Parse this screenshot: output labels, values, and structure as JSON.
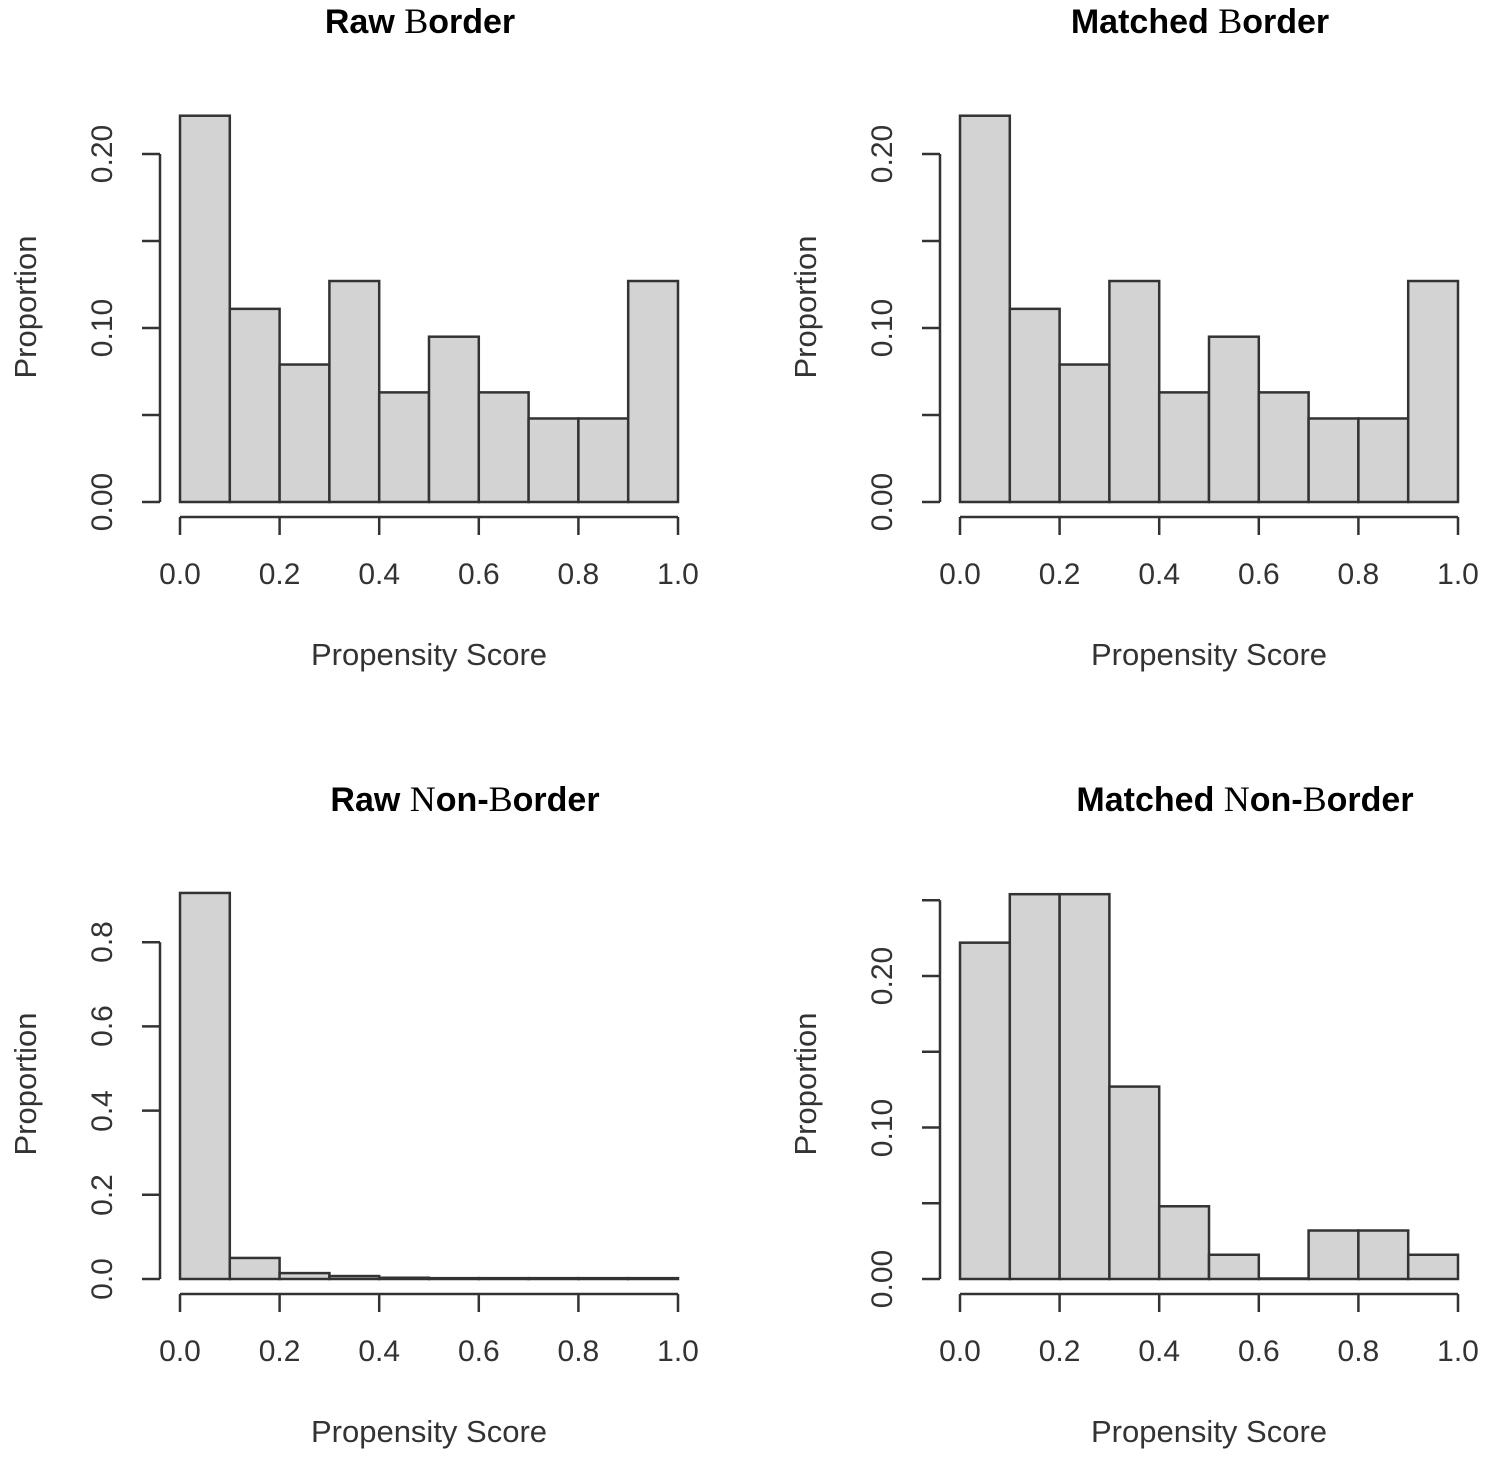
{
  "chart_data": [
    {
      "type": "bar",
      "id": "raw-border",
      "title": "Raw Border",
      "title_parts": [
        {
          "text": "Raw ",
          "serif": false
        },
        {
          "text": "B",
          "serif": true
        },
        {
          "text": "order",
          "serif": false
        }
      ],
      "xlabel": "Propensity Score",
      "ylabel": "Proportion",
      "bin_edges": [
        0.0,
        0.1,
        0.2,
        0.3,
        0.4,
        0.5,
        0.6,
        0.7,
        0.8,
        0.9,
        1.0
      ],
      "categories": [
        "0.0-0.1",
        "0.1-0.2",
        "0.2-0.3",
        "0.3-0.4",
        "0.4-0.5",
        "0.5-0.6",
        "0.6-0.7",
        "0.7-0.8",
        "0.8-0.9",
        "0.9-1.0"
      ],
      "values": [
        0.222,
        0.111,
        0.079,
        0.127,
        0.063,
        0.095,
        0.063,
        0.048,
        0.048,
        0.127
      ],
      "xticks": [
        "0.0",
        "0.2",
        "0.4",
        "0.6",
        "0.8",
        "1.0"
      ],
      "yticks": [
        0.0,
        0.05,
        0.1,
        0.15,
        0.2
      ],
      "ytick_labels": [
        "0.00",
        "",
        "0.10",
        "",
        "0.20"
      ],
      "ylim": [
        0,
        0.2
      ],
      "xlim": [
        0,
        1
      ],
      "grid": false
    },
    {
      "type": "bar",
      "id": "matched-border",
      "title": "Matched Border",
      "title_parts": [
        {
          "text": "Matched ",
          "serif": false
        },
        {
          "text": "B",
          "serif": true
        },
        {
          "text": "order",
          "serif": false
        }
      ],
      "xlabel": "Propensity Score",
      "ylabel": "Proportion",
      "bin_edges": [
        0.0,
        0.1,
        0.2,
        0.3,
        0.4,
        0.5,
        0.6,
        0.7,
        0.8,
        0.9,
        1.0
      ],
      "categories": [
        "0.0-0.1",
        "0.1-0.2",
        "0.2-0.3",
        "0.3-0.4",
        "0.4-0.5",
        "0.5-0.6",
        "0.6-0.7",
        "0.7-0.8",
        "0.8-0.9",
        "0.9-1.0"
      ],
      "values": [
        0.222,
        0.111,
        0.079,
        0.127,
        0.063,
        0.095,
        0.063,
        0.048,
        0.048,
        0.127
      ],
      "xticks": [
        "0.0",
        "0.2",
        "0.4",
        "0.6",
        "0.8",
        "1.0"
      ],
      "yticks": [
        0.0,
        0.05,
        0.1,
        0.15,
        0.2
      ],
      "ytick_labels": [
        "0.00",
        "",
        "0.10",
        "",
        "0.20"
      ],
      "ylim": [
        0,
        0.2
      ],
      "xlim": [
        0,
        1
      ],
      "grid": false
    },
    {
      "type": "bar",
      "id": "raw-non-border",
      "title": "Raw Non-Border",
      "title_parts": [
        {
          "text": "Raw ",
          "serif": false
        },
        {
          "text": "N",
          "serif": true
        },
        {
          "text": "on-",
          "serif": false
        },
        {
          "text": "B",
          "serif": true
        },
        {
          "text": "order",
          "serif": false
        }
      ],
      "xlabel": "Propensity Score",
      "ylabel": "Proportion",
      "bin_edges": [
        0.0,
        0.1,
        0.2,
        0.3,
        0.4,
        0.5,
        0.6,
        0.7,
        0.8,
        0.9,
        1.0
      ],
      "categories": [
        "0.0-0.1",
        "0.1-0.2",
        "0.2-0.3",
        "0.3-0.4",
        "0.4-0.5",
        "0.5-0.6",
        "0.6-0.7",
        "0.7-0.8",
        "0.8-0.9",
        "0.9-1.0"
      ],
      "values": [
        0.917,
        0.05,
        0.014,
        0.007,
        0.003,
        0.002,
        0.002,
        0.002,
        0.002,
        0.002
      ],
      "xticks": [
        "0.0",
        "0.2",
        "0.4",
        "0.6",
        "0.8",
        "1.0"
      ],
      "yticks": [
        0.0,
        0.2,
        0.4,
        0.6,
        0.8
      ],
      "ytick_labels": [
        "0.0",
        "0.2",
        "0.4",
        "0.6",
        "0.8"
      ],
      "ylim": [
        0,
        0.8
      ],
      "xlim": [
        0,
        1
      ],
      "grid": false
    },
    {
      "type": "bar",
      "id": "matched-non-border",
      "title": "Matched Non-Border",
      "title_parts": [
        {
          "text": "Matched ",
          "serif": false
        },
        {
          "text": "N",
          "serif": true
        },
        {
          "text": "on-",
          "serif": false
        },
        {
          "text": "B",
          "serif": true
        },
        {
          "text": "order",
          "serif": false
        }
      ],
      "xlabel": "Propensity Score",
      "ylabel": "Proportion",
      "bin_edges": [
        0.0,
        0.1,
        0.2,
        0.3,
        0.4,
        0.5,
        0.6,
        0.7,
        0.8,
        0.9,
        1.0
      ],
      "categories": [
        "0.0-0.1",
        "0.1-0.2",
        "0.2-0.3",
        "0.3-0.4",
        "0.4-0.5",
        "0.5-0.6",
        "0.6-0.7",
        "0.7-0.8",
        "0.8-0.9",
        "0.9-1.0"
      ],
      "values": [
        0.222,
        0.254,
        0.254,
        0.127,
        0.048,
        0.016,
        0.0,
        0.032,
        0.032,
        0.016
      ],
      "xticks": [
        "0.0",
        "0.2",
        "0.4",
        "0.6",
        "0.8",
        "1.0"
      ],
      "yticks": [
        0.0,
        0.05,
        0.1,
        0.15,
        0.2,
        0.25
      ],
      "ytick_labels": [
        "0.00",
        "",
        "0.10",
        "",
        "0.20",
        ""
      ],
      "ylim": [
        0,
        0.25
      ],
      "xlim": [
        0,
        1
      ],
      "grid": false
    }
  ],
  "style": {
    "bar_fill": "#d3d3d3",
    "bar_stroke": "#333333",
    "axis_color": "#333333",
    "background": "#ffffff"
  }
}
